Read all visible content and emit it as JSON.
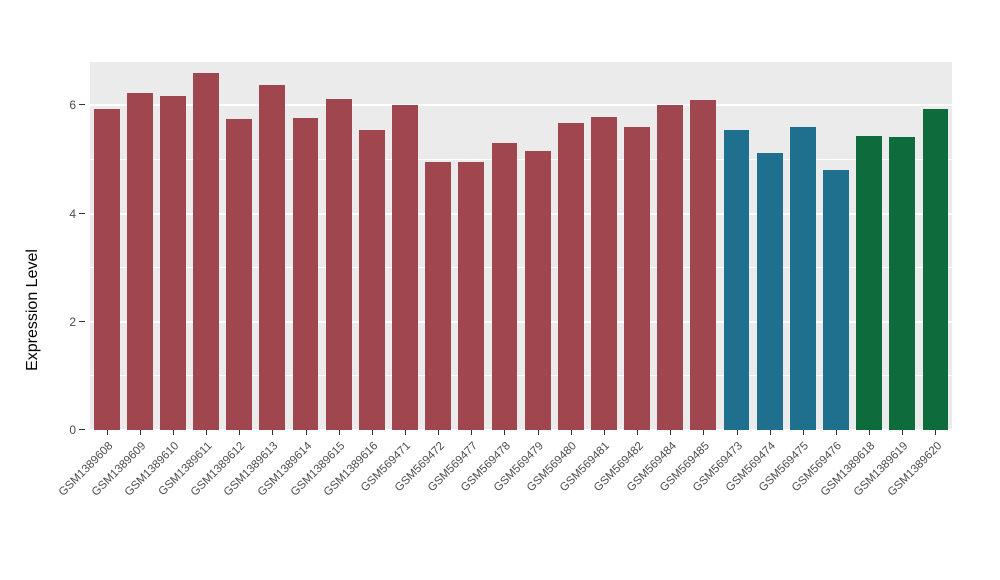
{
  "chart_data": {
    "type": "bar",
    "title": "",
    "xlabel": "",
    "ylabel": "Expression Level",
    "ylim": [
      0,
      6.8
    ],
    "yticks": [
      0,
      2,
      4,
      6
    ],
    "yticks_minor": [
      1,
      3,
      5
    ],
    "grid": true,
    "panel_background": "#EBEBEB",
    "gridline_color": "#ffffff",
    "categories": [
      "GSM1389608",
      "GSM1389609",
      "GSM1389610",
      "GSM1389611",
      "GSM1389612",
      "GSM1389613",
      "GSM1389614",
      "GSM1389615",
      "GSM1389616",
      "GSM569471",
      "GSM569472",
      "GSM569477",
      "GSM569478",
      "GSM569479",
      "GSM569480",
      "GSM569481",
      "GSM569482",
      "GSM569484",
      "GSM569485",
      "GSM569473",
      "GSM569474",
      "GSM569475",
      "GSM569476",
      "GSM1389618",
      "GSM1389619",
      "GSM1389620"
    ],
    "values": [
      5.94,
      6.22,
      6.18,
      6.59,
      5.74,
      6.37,
      5.77,
      6.11,
      5.54,
      6.01,
      4.96,
      4.96,
      5.3,
      5.15,
      5.68,
      5.79,
      5.59,
      6.01,
      6.09,
      5.55,
      5.11,
      5.59,
      4.8,
      5.44,
      5.41,
      5.94
    ],
    "bar_colors": [
      "#A0464F",
      "#A0464F",
      "#A0464F",
      "#A0464F",
      "#A0464F",
      "#A0464F",
      "#A0464F",
      "#A0464F",
      "#A0464F",
      "#A0464F",
      "#A0464F",
      "#A0464F",
      "#A0464F",
      "#A0464F",
      "#A0464F",
      "#A0464F",
      "#A0464F",
      "#A0464F",
      "#A0464F",
      "#1F6F8E",
      "#1F6F8E",
      "#1F6F8E",
      "#1F6F8E",
      "#0E6B3C",
      "#0E6B3C",
      "#0E6B3C"
    ],
    "legend": "none"
  }
}
